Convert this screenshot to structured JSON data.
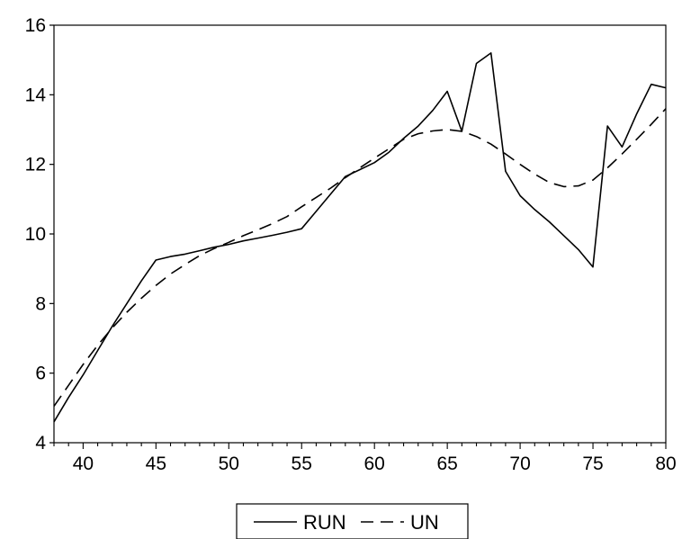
{
  "chart_data": {
    "type": "line",
    "title": "",
    "xlabel": "",
    "ylabel": "",
    "xlim": [
      38,
      80
    ],
    "ylim": [
      4,
      16
    ],
    "xticks": [
      40,
      45,
      50,
      55,
      60,
      65,
      70,
      75,
      80
    ],
    "yticks": [
      4,
      6,
      8,
      10,
      12,
      14,
      16
    ],
    "grid": false,
    "legend_position": "bottom-center",
    "series": [
      {
        "name": "RUN",
        "style": "solid",
        "color": "#000000",
        "x": [
          38,
          39,
          40,
          41,
          42,
          43,
          44,
          45,
          46,
          47,
          48,
          49,
          50,
          51,
          52,
          53,
          54,
          55,
          56,
          57,
          58,
          59,
          60,
          61,
          62,
          63,
          64,
          65,
          66,
          67,
          68,
          69,
          70,
          71,
          72,
          73,
          74,
          75,
          76,
          77,
          78,
          79,
          80
        ],
        "y": [
          4.6,
          5.3,
          5.95,
          6.65,
          7.35,
          8.0,
          8.65,
          9.25,
          9.35,
          9.42,
          9.52,
          9.62,
          9.7,
          9.8,
          9.88,
          9.96,
          10.05,
          10.15,
          10.65,
          11.15,
          11.65,
          11.85,
          12.05,
          12.35,
          12.75,
          13.1,
          13.55,
          14.1,
          12.95,
          14.9,
          15.2,
          11.8,
          11.1,
          10.7,
          10.35,
          9.95,
          9.55,
          9.05,
          13.1,
          12.5,
          13.45,
          14.3,
          14.2
        ]
      },
      {
        "name": "UN",
        "style": "dashed",
        "color": "#000000",
        "x": [
          38,
          39,
          40,
          41,
          42,
          43,
          44,
          45,
          46,
          47,
          48,
          49,
          50,
          51,
          52,
          53,
          54,
          55,
          56,
          57,
          58,
          59,
          60,
          61,
          62,
          63,
          64,
          65,
          66,
          67,
          68,
          69,
          70,
          71,
          72,
          73,
          74,
          75,
          76,
          77,
          78,
          79,
          80
        ],
        "y": [
          5.05,
          5.65,
          6.25,
          6.8,
          7.3,
          7.75,
          8.15,
          8.52,
          8.85,
          9.12,
          9.38,
          9.58,
          9.76,
          9.95,
          10.12,
          10.3,
          10.5,
          10.78,
          11.05,
          11.32,
          11.62,
          11.9,
          12.18,
          12.45,
          12.72,
          12.88,
          12.96,
          13.0,
          12.95,
          12.8,
          12.58,
          12.3,
          12.0,
          11.72,
          11.48,
          11.36,
          11.38,
          11.55,
          11.9,
          12.3,
          12.72,
          13.15,
          13.6
        ]
      }
    ]
  }
}
